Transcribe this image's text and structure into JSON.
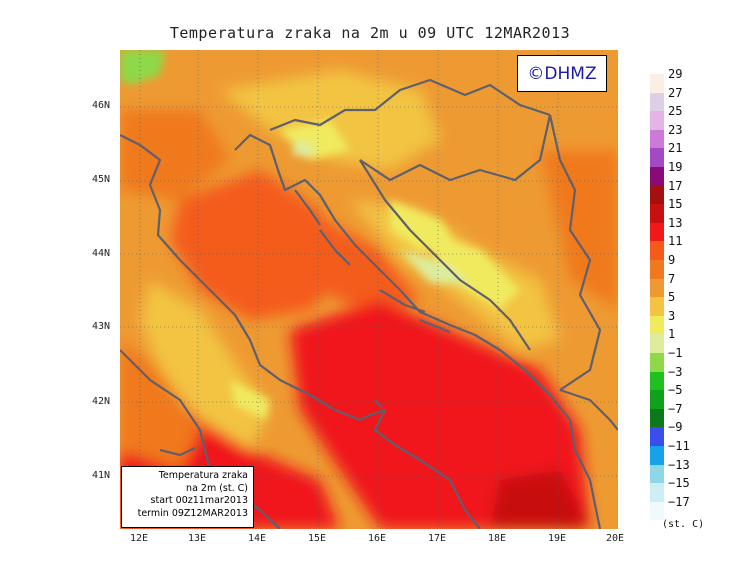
{
  "title": "Temperatura zraka na 2m u 09 UTC 12MAR2013",
  "copyright": "©DHMZ",
  "info_box": {
    "line1": "Temperatura zraka",
    "line2": "na 2m (st. C)",
    "line3": "start 00z11mar2013",
    "line4": "termin 09Z12MAR2013"
  },
  "legend": {
    "labels": [
      "29",
      "27",
      "25",
      "23",
      "21",
      "19",
      "17",
      "15",
      "13",
      "11",
      "9",
      "7",
      "5",
      "3",
      "1",
      "−1",
      "−3",
      "−5",
      "−7",
      "−9",
      "−11",
      "−13",
      "−15",
      "−17"
    ],
    "colors": [
      "#fbeee2",
      "#ddd0e6",
      "#e4b4e6",
      "#cc7ad8",
      "#a449c4",
      "#8c0a78",
      "#a50f0f",
      "#c81010",
      "#f0181b",
      "#f45b1a",
      "#f0791f",
      "#ee9a32",
      "#f2c442",
      "#f0ea5f",
      "#ddec9d",
      "#8fd84a",
      "#20c020",
      "#0fa01c",
      "#0c7a1a",
      "#3c4dee",
      "#16a2e8",
      "#8fd6e8",
      "#cdeef2",
      "#eefafc"
    ],
    "units": "(st. C)"
  },
  "axes": {
    "lat_labels": [
      "46N",
      "45N",
      "44N",
      "43N",
      "42N",
      "41N"
    ],
    "lon_labels": [
      "12E",
      "13E",
      "14E",
      "15E",
      "16E",
      "17E",
      "18E",
      "19E",
      "20E"
    ]
  }
}
